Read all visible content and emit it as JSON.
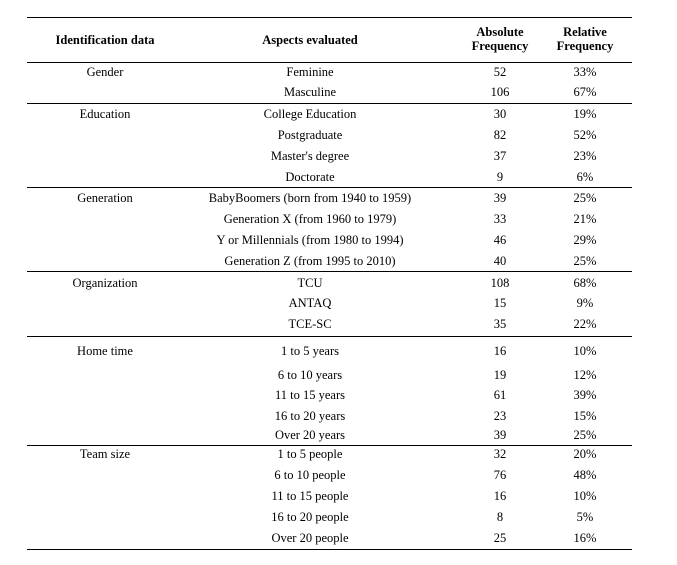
{
  "table": {
    "headers": [
      "Identification data",
      "Aspects evaluated",
      "Absolute Frequency",
      "Relative Frequency"
    ],
    "groups": [
      {
        "label": "Gender",
        "rows": [
          [
            "Feminine",
            52,
            "33%"
          ],
          [
            "Masculine",
            106,
            "67%"
          ]
        ]
      },
      {
        "label": "Education",
        "rows": [
          [
            "College Education",
            30,
            "19%"
          ],
          [
            "Postgraduate",
            82,
            "52%"
          ],
          [
            "Master's degree",
            37,
            "23%"
          ],
          [
            "Doctorate",
            9,
            "6%"
          ]
        ]
      },
      {
        "label": "Generation",
        "rows": [
          [
            "BabyBoomers (born from 1940 to 1959)",
            39,
            "25%"
          ],
          [
            "Generation X (from 1960 to 1979)",
            33,
            "21%"
          ],
          [
            "Y or Millennials (from 1980 to 1994)",
            46,
            "29%"
          ],
          [
            "Generation Z (from 1995 to 2010)",
            40,
            "25%"
          ]
        ]
      },
      {
        "label": "Organization",
        "rows": [
          [
            "TCU",
            108,
            "68%"
          ],
          [
            "ANTAQ",
            15,
            "9%"
          ],
          [
            "TCE-SC",
            35,
            "22%"
          ]
        ]
      },
      {
        "label": "Home time",
        "rows": [
          [
            "1 to 5 years",
            16,
            "10%"
          ],
          [
            "6 to 10 years",
            19,
            "12%"
          ],
          [
            "11 to 15 years",
            61,
            "39%"
          ],
          [
            "16 to 20 years",
            23,
            "15%"
          ],
          [
            "Over 20 years",
            39,
            "25%"
          ]
        ]
      },
      {
        "label": "Team size",
        "rows": [
          [
            "1 to 5 people",
            32,
            "20%"
          ],
          [
            "6 to 10 people",
            76,
            "48%"
          ],
          [
            "11 to 15 people",
            16,
            "10%"
          ],
          [
            "16 to 20 people",
            8,
            "5%"
          ],
          [
            "Over 20 people",
            25,
            "16%"
          ]
        ]
      }
    ]
  }
}
